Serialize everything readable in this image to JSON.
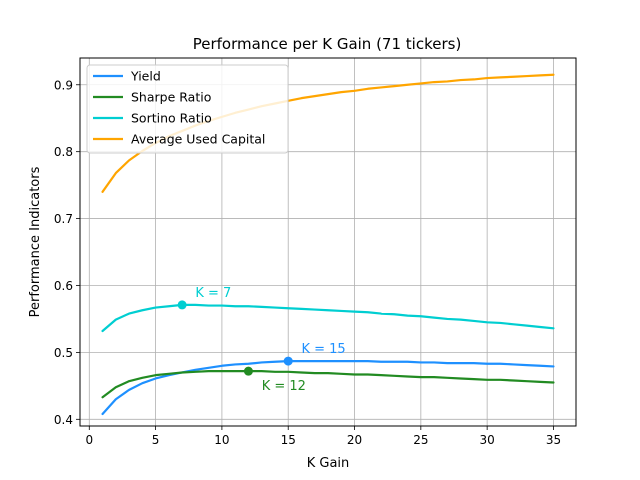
{
  "chart_data": {
    "type": "line",
    "title": "Performance per K Gain (71 tickers)",
    "xlabel": "K Gain",
    "ylabel": "Performance Indicators",
    "xlim": [
      -0.7,
      36.7
    ],
    "ylim": [
      0.39,
      0.94
    ],
    "xticks": [
      0,
      5,
      10,
      15,
      20,
      25,
      30,
      35
    ],
    "yticks": [
      0.4,
      0.5,
      0.6,
      0.7,
      0.8,
      0.9
    ],
    "grid": true,
    "legend_position": "upper-left",
    "x": [
      1,
      2,
      3,
      4,
      5,
      6,
      7,
      8,
      9,
      10,
      11,
      12,
      13,
      14,
      15,
      16,
      17,
      18,
      19,
      20,
      21,
      22,
      23,
      24,
      25,
      26,
      27,
      28,
      29,
      30,
      31,
      32,
      33,
      34,
      35
    ],
    "series": [
      {
        "name": "Yield",
        "color": "#1e90ff",
        "values": [
          0.408,
          0.43,
          0.444,
          0.454,
          0.461,
          0.466,
          0.47,
          0.474,
          0.477,
          0.48,
          0.482,
          0.483,
          0.485,
          0.486,
          0.487,
          0.487,
          0.487,
          0.487,
          0.487,
          0.487,
          0.487,
          0.486,
          0.486,
          0.486,
          0.485,
          0.485,
          0.484,
          0.484,
          0.484,
          0.483,
          0.483,
          0.482,
          0.481,
          0.48,
          0.479
        ]
      },
      {
        "name": "Sharpe Ratio",
        "color": "#228b22",
        "values": [
          0.433,
          0.448,
          0.457,
          0.462,
          0.466,
          0.468,
          0.47,
          0.471,
          0.472,
          0.472,
          0.472,
          0.472,
          0.472,
          0.471,
          0.471,
          0.47,
          0.469,
          0.469,
          0.468,
          0.467,
          0.467,
          0.466,
          0.465,
          0.464,
          0.463,
          0.463,
          0.462,
          0.461,
          0.46,
          0.459,
          0.459,
          0.458,
          0.457,
          0.456,
          0.455
        ]
      },
      {
        "name": "Sortino Ratio",
        "color": "#00ced1",
        "values": [
          0.532,
          0.549,
          0.558,
          0.563,
          0.567,
          0.569,
          0.571,
          0.571,
          0.57,
          0.57,
          0.569,
          0.569,
          0.568,
          0.567,
          0.566,
          0.565,
          0.564,
          0.563,
          0.562,
          0.561,
          0.56,
          0.558,
          0.557,
          0.555,
          0.554,
          0.552,
          0.55,
          0.549,
          0.547,
          0.545,
          0.544,
          0.542,
          0.54,
          0.538,
          0.536
        ]
      },
      {
        "name": "Average Used Capital",
        "color": "#ffa500",
        "values": [
          0.74,
          0.768,
          0.787,
          0.801,
          0.813,
          0.823,
          0.831,
          0.839,
          0.846,
          0.852,
          0.858,
          0.863,
          0.868,
          0.872,
          0.876,
          0.88,
          0.883,
          0.886,
          0.889,
          0.891,
          0.894,
          0.896,
          0.898,
          0.9,
          0.902,
          0.904,
          0.905,
          0.907,
          0.908,
          0.91,
          0.911,
          0.912,
          0.913,
          0.914,
          0.915
        ]
      }
    ],
    "annotations": [
      {
        "text": "K = 7",
        "series": "Sortino Ratio",
        "x": 7,
        "y": 0.571,
        "text_x": 8,
        "text_y": 0.583,
        "color": "#00ced1"
      },
      {
        "text": "K = 15",
        "series": "Yield",
        "x": 15,
        "y": 0.487,
        "text_x": 16,
        "text_y": 0.499,
        "color": "#1e90ff"
      },
      {
        "text": "K = 12",
        "series": "Sharpe Ratio",
        "x": 12,
        "y": 0.472,
        "text_x": 13,
        "text_y": 0.444,
        "color": "#228b22"
      }
    ]
  }
}
